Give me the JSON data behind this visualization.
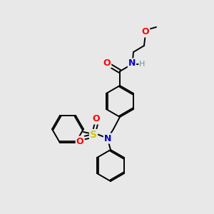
{
  "bg_color": "#e8e8e8",
  "bond_color": "#000000",
  "colors": {
    "O": "#ff0000",
    "N": "#0000cc",
    "S": "#cccc00",
    "H": "#6699aa",
    "C": "#000000"
  },
  "lw": 1.4,
  "ring_r": 22
}
